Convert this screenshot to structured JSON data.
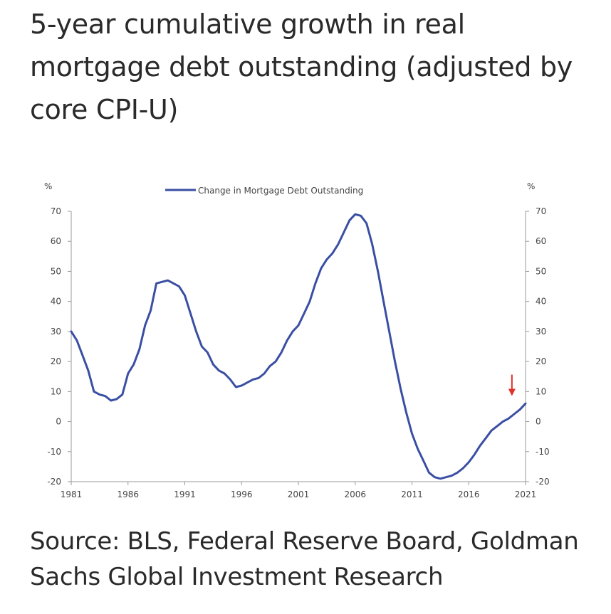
{
  "title": "5-year cumulative growth in real mortgage debt outstanding (adjusted by core CPI-U)",
  "source": "Source: BLS, Federal Reserve Board, Goldman Sachs Global Investment Research",
  "colors": {
    "series": "#3a4fa3",
    "arrow": "#e0302a",
    "axis": "#9a9a9a",
    "text": "#444444"
  },
  "chart_data": {
    "type": "line",
    "title": "",
    "y_unit_left": "%",
    "y_unit_right": "%",
    "ylim": [
      -20,
      70
    ],
    "xlim": [
      1981,
      2021
    ],
    "yticks": [
      "70",
      "60",
      "50",
      "40",
      "30",
      "20",
      "10",
      "0",
      "-10",
      "-20"
    ],
    "xticks": [
      "1981",
      "1986",
      "1991",
      "1996",
      "2001",
      "2006",
      "2011",
      "2016",
      "2021"
    ],
    "legend": "Change in Mortgage Debt Outstanding",
    "legend_position": "top-center",
    "annotations": [
      {
        "type": "arrow",
        "x": 2019.8,
        "y": 9,
        "direction": "down",
        "color": "#e0302a"
      }
    ],
    "series": [
      {
        "name": "Change in Mortgage Debt Outstanding",
        "points": [
          [
            1981.0,
            30
          ],
          [
            1981.5,
            27
          ],
          [
            1982.0,
            22
          ],
          [
            1982.5,
            17
          ],
          [
            1983.0,
            10
          ],
          [
            1983.5,
            9
          ],
          [
            1984.0,
            8.5
          ],
          [
            1984.5,
            7
          ],
          [
            1985.0,
            7.5
          ],
          [
            1985.5,
            9
          ],
          [
            1986.0,
            16
          ],
          [
            1986.5,
            19
          ],
          [
            1987.0,
            24
          ],
          [
            1987.5,
            32
          ],
          [
            1988.0,
            37
          ],
          [
            1988.5,
            46
          ],
          [
            1989.0,
            46.5
          ],
          [
            1989.5,
            47
          ],
          [
            1990.0,
            46
          ],
          [
            1990.5,
            45
          ],
          [
            1991.0,
            42
          ],
          [
            1991.5,
            36
          ],
          [
            1992.0,
            30
          ],
          [
            1992.5,
            25
          ],
          [
            1993.0,
            23
          ],
          [
            1993.5,
            19
          ],
          [
            1994.0,
            17
          ],
          [
            1994.5,
            16
          ],
          [
            1995.0,
            14
          ],
          [
            1995.5,
            11.5
          ],
          [
            1996.0,
            12
          ],
          [
            1996.5,
            13
          ],
          [
            1997.0,
            14
          ],
          [
            1997.5,
            14.5
          ],
          [
            1998.0,
            16
          ],
          [
            1998.5,
            18.5
          ],
          [
            1999.0,
            20
          ],
          [
            1999.5,
            23
          ],
          [
            2000.0,
            27
          ],
          [
            2000.5,
            30
          ],
          [
            2001.0,
            32
          ],
          [
            2001.5,
            36
          ],
          [
            2002.0,
            40
          ],
          [
            2002.5,
            46
          ],
          [
            2003.0,
            51
          ],
          [
            2003.5,
            54
          ],
          [
            2004.0,
            56
          ],
          [
            2004.5,
            59
          ],
          [
            2005.0,
            63
          ],
          [
            2005.5,
            67
          ],
          [
            2006.0,
            69
          ],
          [
            2006.5,
            68.5
          ],
          [
            2007.0,
            66
          ],
          [
            2007.5,
            59
          ],
          [
            2008.0,
            50
          ],
          [
            2008.5,
            40
          ],
          [
            2009.0,
            30
          ],
          [
            2009.5,
            20
          ],
          [
            2010.0,
            11
          ],
          [
            2010.5,
            3
          ],
          [
            2011.0,
            -4
          ],
          [
            2011.5,
            -9
          ],
          [
            2012.0,
            -13
          ],
          [
            2012.5,
            -17
          ],
          [
            2013.0,
            -18.5
          ],
          [
            2013.5,
            -19
          ],
          [
            2014.0,
            -18.5
          ],
          [
            2014.5,
            -18
          ],
          [
            2015.0,
            -17
          ],
          [
            2015.5,
            -15.5
          ],
          [
            2016.0,
            -13.5
          ],
          [
            2016.5,
            -11
          ],
          [
            2017.0,
            -8
          ],
          [
            2017.5,
            -5.5
          ],
          [
            2018.0,
            -3
          ],
          [
            2018.5,
            -1.5
          ],
          [
            2019.0,
            0
          ],
          [
            2019.5,
            1
          ],
          [
            2020.0,
            2.5
          ],
          [
            2020.5,
            4
          ],
          [
            2021.0,
            6
          ]
        ]
      }
    ]
  }
}
